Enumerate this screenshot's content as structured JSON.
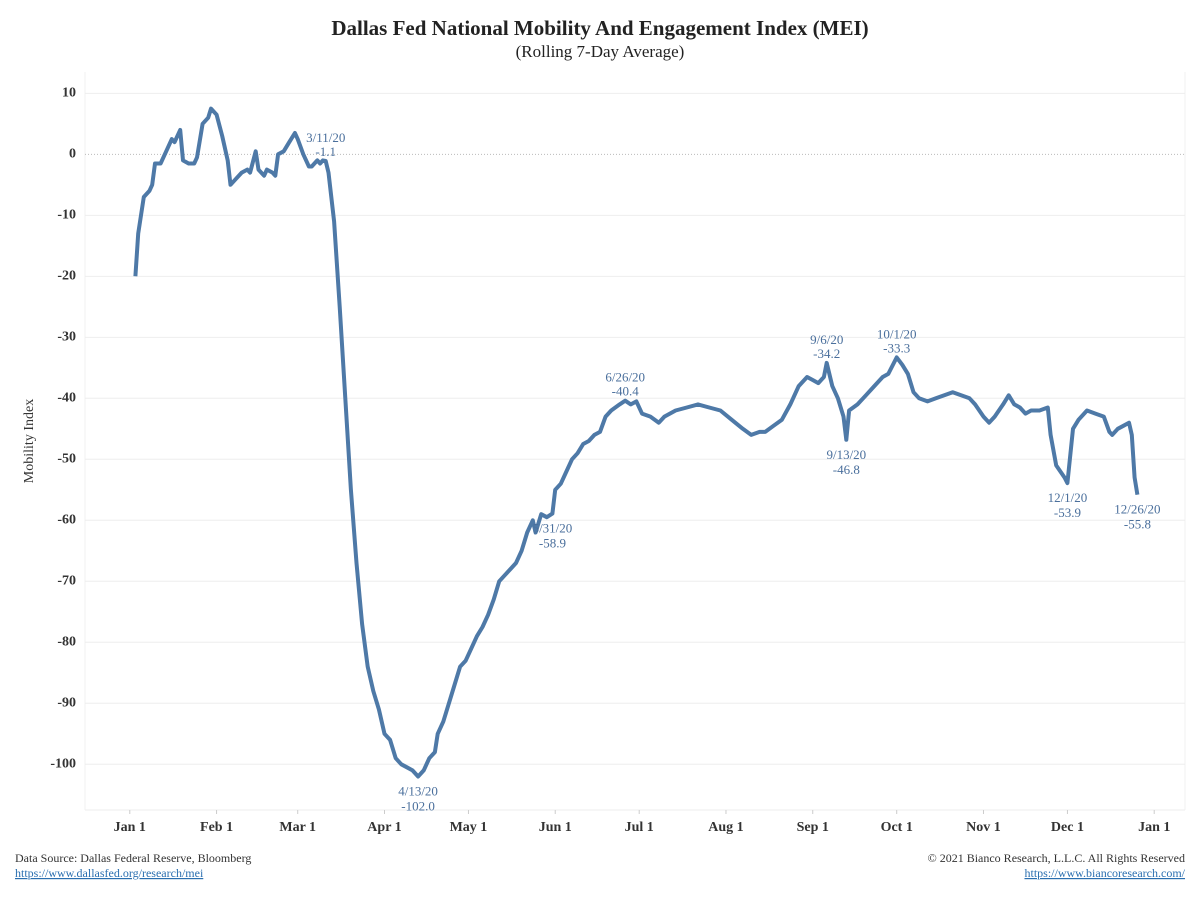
{
  "chart_data": {
    "type": "line",
    "title": "Dallas Fed National Mobility And Engagement Index (MEI)",
    "subtitle": "(Rolling 7-Day Average)",
    "y_label": "Mobility Index",
    "x": [
      "2020-01-03",
      "2020-01-04",
      "2020-01-06",
      "2020-01-08",
      "2020-01-09",
      "2020-01-10",
      "2020-01-12",
      "2020-01-14",
      "2020-01-16",
      "2020-01-17",
      "2020-01-19",
      "2020-01-20",
      "2020-01-22",
      "2020-01-24",
      "2020-01-25",
      "2020-01-27",
      "2020-01-29",
      "2020-01-30",
      "2020-02-01",
      "2020-02-03",
      "2020-02-05",
      "2020-02-06",
      "2020-02-08",
      "2020-02-10",
      "2020-02-12",
      "2020-02-13",
      "2020-02-15",
      "2020-02-16",
      "2020-02-18",
      "2020-02-19",
      "2020-02-21",
      "2020-02-22",
      "2020-02-23",
      "2020-02-25",
      "2020-02-27",
      "2020-02-29",
      "2020-03-01",
      "2020-03-03",
      "2020-03-05",
      "2020-03-06",
      "2020-03-08",
      "2020-03-09",
      "2020-03-10",
      "2020-03-11",
      "2020-03-12",
      "2020-03-14",
      "2020-03-16",
      "2020-03-18",
      "2020-03-20",
      "2020-03-22",
      "2020-03-24",
      "2020-03-26",
      "2020-03-28",
      "2020-03-30",
      "2020-04-01",
      "2020-04-03",
      "2020-04-05",
      "2020-04-07",
      "2020-04-09",
      "2020-04-11",
      "2020-04-13",
      "2020-04-15",
      "2020-04-17",
      "2020-04-19",
      "2020-04-20",
      "2020-04-22",
      "2020-04-24",
      "2020-04-26",
      "2020-04-28",
      "2020-04-30",
      "2020-05-02",
      "2020-05-04",
      "2020-05-06",
      "2020-05-08",
      "2020-05-10",
      "2020-05-12",
      "2020-05-14",
      "2020-05-16",
      "2020-05-18",
      "2020-05-20",
      "2020-05-22",
      "2020-05-24",
      "2020-05-25",
      "2020-05-27",
      "2020-05-29",
      "2020-05-31",
      "2020-06-01",
      "2020-06-03",
      "2020-06-05",
      "2020-06-07",
      "2020-06-09",
      "2020-06-11",
      "2020-06-13",
      "2020-06-15",
      "2020-06-17",
      "2020-06-19",
      "2020-06-21",
      "2020-06-24",
      "2020-06-26",
      "2020-06-28",
      "2020-06-30",
      "2020-07-02",
      "2020-07-05",
      "2020-07-08",
      "2020-07-10",
      "2020-07-14",
      "2020-07-18",
      "2020-07-22",
      "2020-07-26",
      "2020-07-30",
      "2020-08-03",
      "2020-08-07",
      "2020-08-10",
      "2020-08-13",
      "2020-08-15",
      "2020-08-18",
      "2020-08-21",
      "2020-08-24",
      "2020-08-27",
      "2020-08-30",
      "2020-09-01",
      "2020-09-03",
      "2020-09-05",
      "2020-09-06",
      "2020-09-08",
      "2020-09-10",
      "2020-09-12",
      "2020-09-13",
      "2020-09-14",
      "2020-09-17",
      "2020-09-20",
      "2020-09-23",
      "2020-09-26",
      "2020-09-28",
      "2020-10-01",
      "2020-10-03",
      "2020-10-05",
      "2020-10-07",
      "2020-10-09",
      "2020-10-12",
      "2020-10-15",
      "2020-10-18",
      "2020-10-21",
      "2020-10-24",
      "2020-10-27",
      "2020-10-29",
      "2020-11-01",
      "2020-11-03",
      "2020-11-05",
      "2020-11-08",
      "2020-11-10",
      "2020-11-12",
      "2020-11-14",
      "2020-11-16",
      "2020-11-18",
      "2020-11-21",
      "2020-11-24",
      "2020-11-25",
      "2020-11-27",
      "2020-11-30",
      "2020-12-01",
      "2020-12-03",
      "2020-12-05",
      "2020-12-08",
      "2020-12-11",
      "2020-12-14",
      "2020-12-16",
      "2020-12-17",
      "2020-12-19",
      "2020-12-21",
      "2020-12-23",
      "2020-12-24",
      "2020-12-25",
      "2020-12-26"
    ],
    "series": [
      {
        "name": "MEI",
        "color": "#4e79a7",
        "values": [
          -20,
          -13,
          -7,
          -6,
          -5,
          -1.5,
          -1.5,
          0.5,
          2.5,
          2,
          4,
          -1,
          -1.5,
          -1.5,
          -0.5,
          5,
          6,
          7.5,
          6.5,
          3,
          -1,
          -5,
          -4,
          -3,
          -2.5,
          -3,
          0.5,
          -2.5,
          -3.5,
          -2.5,
          -3,
          -3.5,
          0,
          0.5,
          2,
          3.5,
          2.5,
          0,
          -2,
          -2,
          -1,
          -1.5,
          -1,
          -1.1,
          -3,
          -11,
          -25,
          -40,
          -55,
          -67,
          -77,
          -84,
          -88,
          -91,
          -95,
          -96,
          -99,
          -100,
          -100.5,
          -101,
          -102,
          -101,
          -99,
          -98,
          -95,
          -93,
          -90,
          -87,
          -84,
          -83,
          -81,
          -79,
          -77.5,
          -75.5,
          -73,
          -70,
          -69,
          -68,
          -67,
          -65,
          -62,
          -60,
          -62,
          -59,
          -59.5,
          -58.9,
          -55,
          -54,
          -52,
          -50,
          -49,
          -47.5,
          -47,
          -46,
          -45.5,
          -43,
          -42,
          -41,
          -40.4,
          -41,
          -40.5,
          -42.5,
          -43,
          -44,
          -43,
          -42,
          -41.5,
          -41,
          -41.5,
          -42,
          -43.5,
          -45,
          -46,
          -45.5,
          -45.5,
          -44.5,
          -43.5,
          -41,
          -38,
          -36.5,
          -37,
          -37.5,
          -36.5,
          -34.2,
          -38,
          -40,
          -43,
          -46.8,
          -42,
          -41,
          -39.5,
          -38,
          -36.5,
          -36,
          -33.3,
          -34.5,
          -36,
          -39,
          -40,
          -40.5,
          -40,
          -39.5,
          -39,
          -39.5,
          -40,
          -41,
          -43,
          -44,
          -43,
          -41,
          -39.5,
          -41,
          -41.5,
          -42.5,
          -42,
          -42,
          -41.5,
          -46,
          -51,
          -53,
          -53.9,
          -45,
          -43.5,
          -42,
          -42.5,
          -43,
          -45.5,
          -46,
          -45,
          -44.5,
          -44,
          -46,
          -53,
          -55.8
        ]
      }
    ],
    "xlim": [
      "2019-12-16",
      "2021-01-12"
    ],
    "xticks": [
      {
        "value": "2020-01-01",
        "label": "Jan 1"
      },
      {
        "value": "2020-02-01",
        "label": "Feb 1"
      },
      {
        "value": "2020-03-01",
        "label": "Mar 1"
      },
      {
        "value": "2020-04-01",
        "label": "Apr 1"
      },
      {
        "value": "2020-05-01",
        "label": "May 1"
      },
      {
        "value": "2020-06-01",
        "label": "Jun 1"
      },
      {
        "value": "2020-07-01",
        "label": "Jul 1"
      },
      {
        "value": "2020-08-01",
        "label": "Aug 1"
      },
      {
        "value": "2020-09-01",
        "label": "Sep 1"
      },
      {
        "value": "2020-10-01",
        "label": "Oct 1"
      },
      {
        "value": "2020-11-01",
        "label": "Nov 1"
      },
      {
        "value": "2020-12-01",
        "label": "Dec 1"
      },
      {
        "value": "2021-01-01",
        "label": "Jan 1"
      }
    ],
    "ylim": [
      -107.5,
      13.5
    ],
    "yticks": [
      10,
      0,
      -10,
      -20,
      -30,
      -40,
      -50,
      -60,
      -70,
      -80,
      -90,
      -100
    ],
    "grid": true,
    "annotations": [
      {
        "date": "3/11/20",
        "value": -1.1,
        "position": "above"
      },
      {
        "date": "4/13/20",
        "value": -102,
        "value_label": "-102.0",
        "position": "below"
      },
      {
        "date": "5/31/20",
        "value": -58.9,
        "position": "below"
      },
      {
        "date": "6/26/20",
        "value": -40.4,
        "position": "above"
      },
      {
        "date": "9/6/20",
        "value": -34.2,
        "position": "above"
      },
      {
        "date": "9/13/20",
        "value": -46.8,
        "position": "below"
      },
      {
        "date": "10/1/20",
        "value": -33.3,
        "position": "above"
      },
      {
        "date": "12/1/20",
        "value": -53.9,
        "position": "below"
      },
      {
        "date": "12/26/20",
        "value": -55.8,
        "position": "below"
      }
    ]
  },
  "footer": {
    "source": "Data Source: Dallas Federal Reserve, Bloomberg",
    "source_url": "https://www.dallasfed.org/research/mei",
    "copyright": "© 2021 Bianco Research, L.L.C. All Rights Reserved",
    "site_url": "https://www.biancoresearch.com/"
  }
}
